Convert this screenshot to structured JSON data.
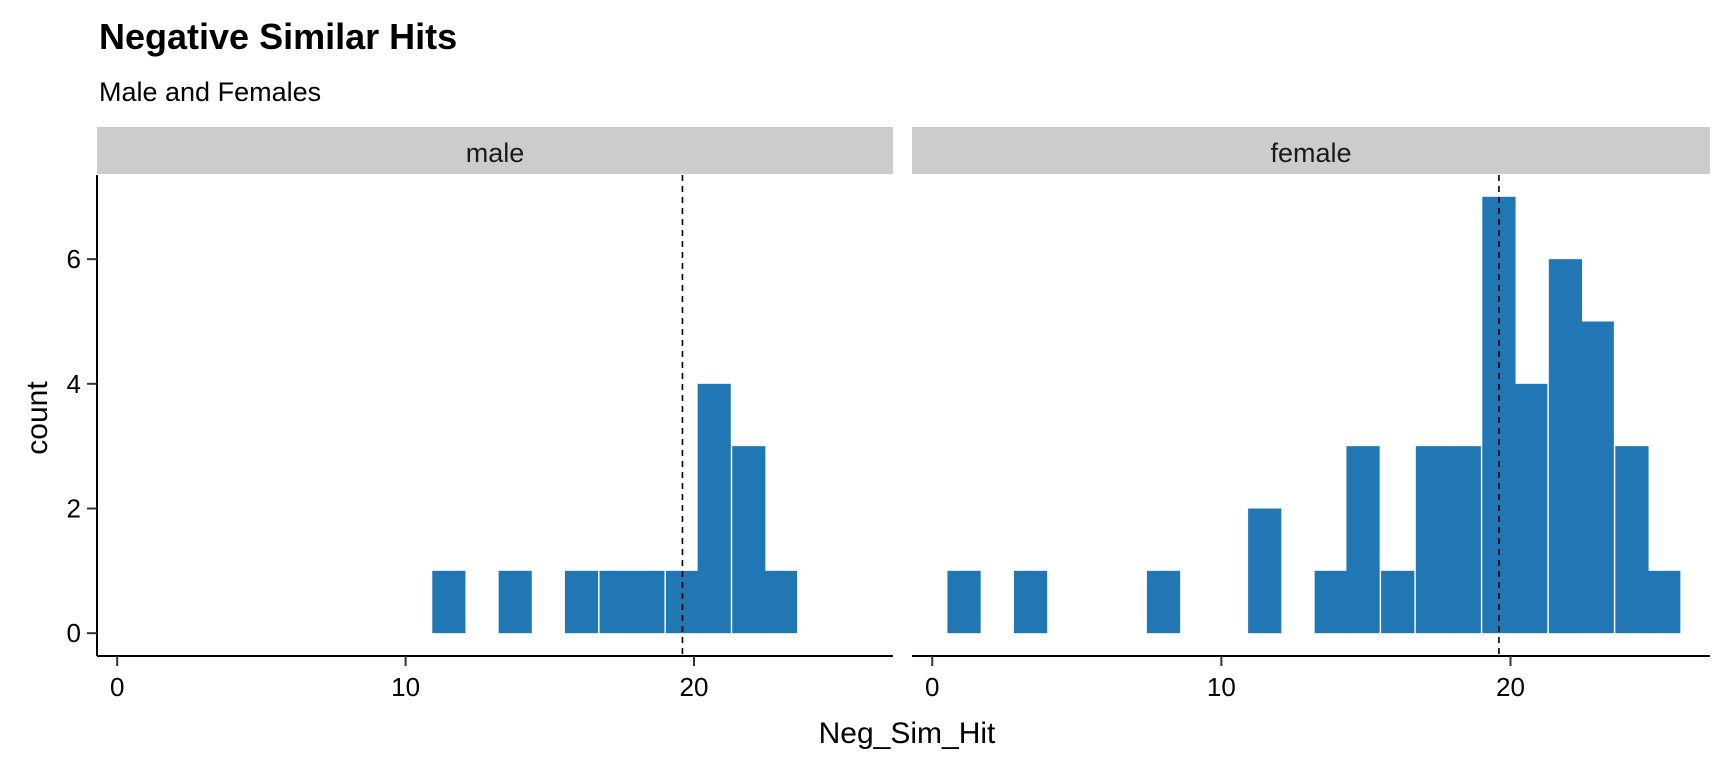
{
  "chart_data": {
    "type": "bar",
    "title": "Negative Similar Hits",
    "subtitle": "Male and Females",
    "xlabel": "Neg_Sim_Hit",
    "ylabel": "count",
    "xlim": [
      -0.7,
      26.9
    ],
    "ylim": [
      -0.35,
      7.35
    ],
    "x_ticks": [
      0,
      10,
      20
    ],
    "y_ticks": [
      0,
      2,
      4,
      6
    ],
    "grid": false,
    "legend": "none",
    "bar_color": "#2077B4",
    "strip_color": "#CCCCCC",
    "reference_line": {
      "x": 19.6,
      "style": "dashed"
    },
    "bin_width": 1.15,
    "panels": [
      {
        "name": "male",
        "bins": [
          {
            "x": 11.5,
            "count": 1
          },
          {
            "x": 13.8,
            "count": 1
          },
          {
            "x": 16.1,
            "count": 1
          },
          {
            "x": 17.3,
            "count": 1
          },
          {
            "x": 18.4,
            "count": 1
          },
          {
            "x": 19.6,
            "count": 1
          },
          {
            "x": 20.7,
            "count": 4
          },
          {
            "x": 21.9,
            "count": 3
          },
          {
            "x": 23.0,
            "count": 1
          }
        ]
      },
      {
        "name": "female",
        "bins": [
          {
            "x": 1.1,
            "count": 1
          },
          {
            "x": 3.4,
            "count": 1
          },
          {
            "x": 8.0,
            "count": 1
          },
          {
            "x": 11.5,
            "count": 2
          },
          {
            "x": 13.8,
            "count": 1
          },
          {
            "x": 14.9,
            "count": 3
          },
          {
            "x": 16.1,
            "count": 1
          },
          {
            "x": 17.3,
            "count": 3
          },
          {
            "x": 18.4,
            "count": 3
          },
          {
            "x": 19.6,
            "count": 7
          },
          {
            "x": 20.7,
            "count": 4
          },
          {
            "x": 21.9,
            "count": 6
          },
          {
            "x": 23.0,
            "count": 5
          },
          {
            "x": 24.2,
            "count": 3
          },
          {
            "x": 25.3,
            "count": 1
          }
        ]
      }
    ]
  }
}
